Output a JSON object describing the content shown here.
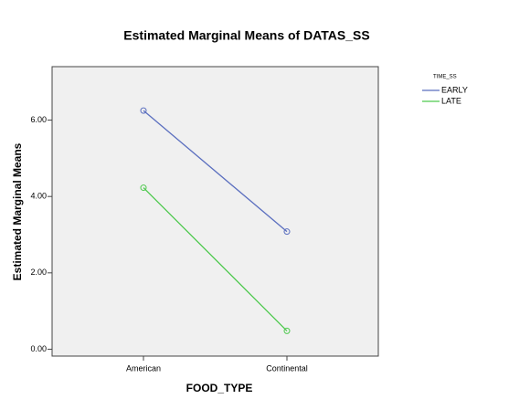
{
  "chart_data": {
    "type": "line",
    "title": "Estimated Marginal Means of DATAS_SS",
    "x_label": "FOOD_TYPE",
    "y_label": "Estimated Marginal Means",
    "legend_title": "TIME_SS",
    "categories": [
      "American",
      "Continental"
    ],
    "series": [
      {
        "name": "EARLY",
        "color": "#5b6fbf",
        "values": [
          6.25,
          3.08
        ]
      },
      {
        "name": "LATE",
        "color": "#4ec94e",
        "values": [
          4.23,
          0.48
        ]
      }
    ],
    "ylim": [
      -0.18,
      7.4
    ],
    "yticks": [
      {
        "value": 0,
        "label": "0.00"
      },
      {
        "value": 2,
        "label": "2.00"
      },
      {
        "value": 4,
        "label": "4.00"
      },
      {
        "value": 6,
        "label": "6.00"
      }
    ],
    "legend": "right"
  }
}
